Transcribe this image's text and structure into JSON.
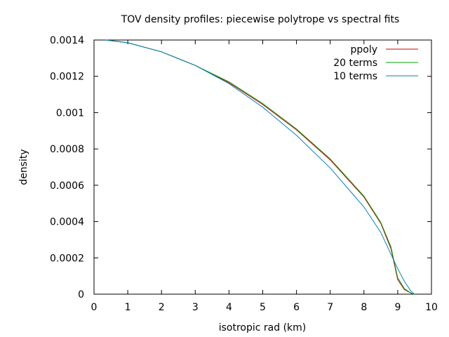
{
  "chart_data": {
    "type": "line",
    "title": "TOV density profiles: piecewise polytrope vs spectral fits",
    "xlabel": "isotropic rad (km)",
    "ylabel": "density",
    "xlim": [
      0,
      10
    ],
    "ylim": [
      0,
      0.0014
    ],
    "xticks": [
      0,
      1,
      2,
      3,
      4,
      5,
      6,
      7,
      8,
      9,
      10
    ],
    "yticks": [
      0,
      0.0002,
      0.0004,
      0.0006,
      0.0008,
      0.001,
      0.0012,
      0.0014
    ],
    "ytick_labels": [
      "0",
      "0.0002",
      "0.0004",
      "0.0006",
      "0.0008",
      "0.001",
      "0.0012",
      "0.0014"
    ],
    "grid": false,
    "legend_position": "top-right",
    "series": [
      {
        "name": "ppoly",
        "color": "#cc0000",
        "x": [
          0.35,
          1,
          2,
          3,
          4,
          5,
          6,
          7,
          8,
          8.5,
          8.8,
          9.0,
          9.2,
          9.4,
          9.5
        ],
        "y": [
          0.0014,
          0.001385,
          0.001335,
          0.00126,
          0.001165,
          0.001045,
          0.000905,
          0.00074,
          0.000535,
          0.00039,
          0.00025,
          8e-05,
          2.5e-05,
          5e-06,
          0.0
        ]
      },
      {
        "name": "20 terms",
        "color": "#00a000",
        "x": [
          0.35,
          1,
          2,
          3,
          4,
          5,
          6,
          7,
          8,
          8.5,
          8.8,
          9.0,
          9.2,
          9.4,
          9.5
        ],
        "y": [
          0.0014,
          0.001385,
          0.001335,
          0.00126,
          0.00117,
          0.00105,
          0.00091,
          0.000745,
          0.00054,
          0.000395,
          0.00026,
          9e-05,
          3e-05,
          5e-06,
          0.0
        ]
      },
      {
        "name": "10 terms",
        "color": "#0080c0",
        "x": [
          0.35,
          1,
          2,
          3,
          4,
          5,
          6,
          7,
          8,
          8.5,
          9.0,
          9.2,
          9.4,
          9.5
        ],
        "y": [
          0.0014,
          0.001385,
          0.001335,
          0.00126,
          0.00116,
          0.00103,
          0.000875,
          0.000695,
          0.00048,
          0.00034,
          0.00014,
          7e-05,
          1.5e-05,
          0.0
        ]
      }
    ]
  }
}
